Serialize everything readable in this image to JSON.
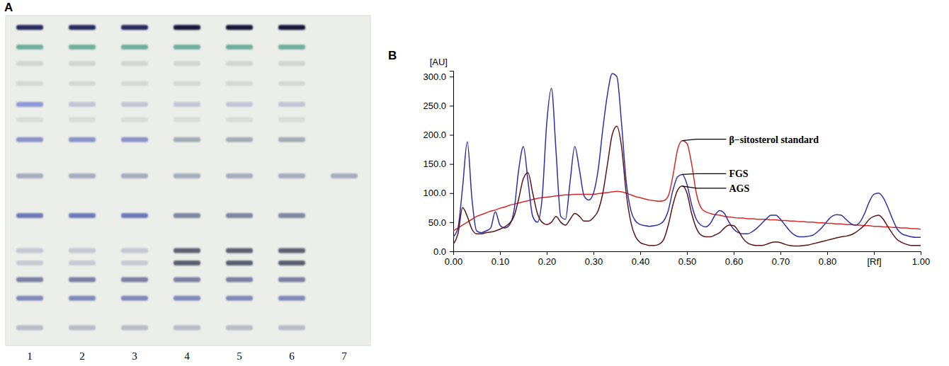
{
  "chart_data": [
    {
      "type": "tlc_plate",
      "panel": "A",
      "categories": [
        "1",
        "2",
        "3",
        "4",
        "5",
        "6",
        "7"
      ],
      "bands": [
        {
          "rf": 0.985,
          "color": "#2a2a5e",
          "lanes": [
            0,
            1,
            2
          ]
        },
        {
          "rf": 0.985,
          "color": "#141438",
          "lanes": [
            3,
            4,
            5
          ]
        },
        {
          "rf": 0.923,
          "color": "#6fae9e",
          "lanes": [
            0,
            1,
            2,
            3,
            4,
            5
          ]
        },
        {
          "rf": 0.871,
          "color": "#d2d6d0",
          "lanes": [
            0,
            1,
            2,
            3,
            4,
            5
          ]
        },
        {
          "rf": 0.808,
          "color": "#d6d9d3",
          "lanes": [
            0,
            1,
            2,
            3,
            4,
            5
          ]
        },
        {
          "rf": 0.742,
          "color": "#8f98d6",
          "lanes": [
            0
          ]
        },
        {
          "rf": 0.742,
          "color": "#c2c6d4",
          "lanes": [
            1,
            2,
            3,
            4,
            5
          ]
        },
        {
          "rf": 0.694,
          "color": "#dadcd6",
          "lanes": [
            0,
            1,
            2,
            3,
            4,
            5
          ]
        },
        {
          "rf": 0.631,
          "color": "#8a92c8",
          "lanes": [
            0,
            1,
            2
          ]
        },
        {
          "rf": 0.631,
          "color": "#a4acb6",
          "lanes": [
            3,
            4,
            5
          ]
        },
        {
          "rf": 0.517,
          "color": "#a8acbc",
          "lanes": [
            0,
            1,
            2,
            3,
            4,
            5,
            6
          ]
        },
        {
          "rf": 0.392,
          "color": "#6e78b8",
          "lanes": [
            0,
            1,
            2
          ]
        },
        {
          "rf": 0.392,
          "color": "#7f86a0",
          "lanes": [
            3,
            4,
            5
          ]
        },
        {
          "rf": 0.281,
          "color": "#c5c8d2",
          "lanes": [
            0,
            1,
            2
          ]
        },
        {
          "rf": 0.281,
          "color": "#5c6070",
          "lanes": [
            3,
            4,
            5
          ]
        },
        {
          "rf": 0.242,
          "color": "#c8cbd4",
          "lanes": [
            0,
            1,
            2
          ]
        },
        {
          "rf": 0.242,
          "color": "#5a5e70",
          "lanes": [
            3,
            4,
            5
          ]
        },
        {
          "rf": 0.19,
          "color": "#7b80a0",
          "lanes": [
            0,
            1,
            2,
            3,
            4,
            5
          ]
        },
        {
          "rf": 0.131,
          "color": "#8088b8",
          "lanes": [
            0,
            1,
            2,
            3,
            4,
            5
          ]
        },
        {
          "rf": 0.038,
          "color": "#b8bcc4",
          "lanes": [
            0,
            1,
            2,
            3,
            4,
            5
          ]
        }
      ]
    },
    {
      "type": "line",
      "panel": "B",
      "ylabel": "[AU]",
      "grid": false,
      "x": [
        0,
        0.01,
        0.02,
        0.03,
        0.04,
        0.05,
        0.06,
        0.07,
        0.08,
        0.09,
        0.1,
        0.11,
        0.12,
        0.13,
        0.14,
        0.15,
        0.16,
        0.17,
        0.18,
        0.19,
        0.2,
        0.21,
        0.22,
        0.23,
        0.24,
        0.25,
        0.26,
        0.27,
        0.28,
        0.29,
        0.3,
        0.31,
        0.32,
        0.33,
        0.34,
        0.35,
        0.36,
        0.37,
        0.38,
        0.39,
        0.4,
        0.41,
        0.42,
        0.43,
        0.44,
        0.45,
        0.46,
        0.47,
        0.48,
        0.49,
        0.5,
        0.51,
        0.52,
        0.53,
        0.54,
        0.55,
        0.56,
        0.57,
        0.58,
        0.59,
        0.6,
        0.61,
        0.62,
        0.63,
        0.64,
        0.65,
        0.66,
        0.67,
        0.68,
        0.69,
        0.7,
        0.71,
        0.72,
        0.73,
        0.74,
        0.75,
        0.76,
        0.77,
        0.78,
        0.79,
        0.8,
        0.81,
        0.82,
        0.83,
        0.84,
        0.85,
        0.86,
        0.87,
        0.88,
        0.89,
        0.9,
        0.91,
        0.92,
        0.93,
        0.94,
        0.95,
        0.96,
        0.97,
        0.98,
        0.99,
        1
      ],
      "series": [
        {
          "color": "#d42a2a",
          "values": [
            35,
            40,
            45,
            50,
            55,
            60,
            63,
            66,
            69,
            71,
            74,
            76,
            79,
            81,
            83,
            85,
            87,
            89,
            91,
            92,
            93,
            94,
            95,
            96,
            97,
            97,
            98,
            98,
            98,
            98,
            98,
            99,
            100,
            101,
            102,
            103,
            102,
            100,
            97,
            94,
            92,
            90,
            88,
            87,
            86,
            87,
            95,
            130,
            175,
            190,
            185,
            150,
            100,
            75,
            68,
            65,
            63,
            62,
            60,
            59,
            58,
            57,
            57,
            56,
            56,
            55,
            55,
            55,
            54,
            54,
            53,
            53,
            52,
            52,
            51,
            51,
            50,
            50,
            49,
            49,
            48,
            48,
            47,
            47,
            46,
            46,
            45,
            45,
            44,
            44,
            43,
            43,
            42,
            42,
            41,
            41,
            40,
            40,
            39,
            39,
            38
          ]
        },
        {
          "color": "#2f2fa8",
          "values": [
            25,
            40,
            110,
            188,
            90,
            35,
            32,
            35,
            40,
            68,
            45,
            40,
            45,
            70,
            140,
            180,
            120,
            60,
            50,
            90,
            220,
            280,
            170,
            60,
            55,
            120,
            180,
            140,
            95,
            88,
            100,
            140,
            210,
            270,
            305,
            300,
            220,
            120,
            70,
            52,
            46,
            44,
            43,
            44,
            46,
            52,
            70,
            105,
            128,
            132,
            115,
            80,
            55,
            45,
            42,
            48,
            62,
            70,
            65,
            50,
            38,
            32,
            30,
            30,
            34,
            40,
            48,
            56,
            62,
            62,
            55,
            45,
            35,
            28,
            25,
            25,
            26,
            28,
            34,
            42,
            52,
            60,
            63,
            62,
            55,
            48,
            45,
            50,
            65,
            85,
            98,
            100,
            92,
            75,
            55,
            38,
            30,
            27,
            25,
            24,
            24
          ]
        },
        {
          "color": "#5c1414",
          "values": [
            12,
            30,
            75,
            60,
            38,
            30,
            30,
            32,
            33,
            35,
            38,
            42,
            48,
            60,
            90,
            125,
            135,
            100,
            65,
            50,
            46,
            50,
            60,
            50,
            45,
            55,
            65,
            60,
            52,
            52,
            58,
            70,
            100,
            150,
            200,
            215,
            180,
            100,
            50,
            25,
            15,
            12,
            10,
            10,
            12,
            20,
            45,
            80,
            105,
            112,
            100,
            65,
            40,
            28,
            25,
            25,
            28,
            32,
            40,
            45,
            44,
            35,
            22,
            14,
            11,
            10,
            10,
            12,
            15,
            16,
            15,
            12,
            10,
            9,
            9,
            10,
            11,
            13,
            15,
            17,
            19,
            21,
            23,
            25,
            26,
            28,
            32,
            38,
            45,
            55,
            60,
            62,
            55,
            42,
            30,
            20,
            15,
            12,
            10,
            10,
            10
          ]
        }
      ],
      "xlim": [
        0,
        1
      ],
      "ylim": [
        0,
        310
      ],
      "xticks": [
        {
          "value": 0,
          "label": "0.00"
        },
        {
          "value": 0.1,
          "label": "0.10"
        },
        {
          "value": 0.2,
          "label": "0.20"
        },
        {
          "value": 0.3,
          "label": "0.30"
        },
        {
          "value": 0.4,
          "label": "0.40"
        },
        {
          "value": 0.5,
          "label": "0.50"
        },
        {
          "value": 0.6,
          "label": "0.60"
        },
        {
          "value": 0.7,
          "label": "0.70"
        },
        {
          "value": 0.8,
          "label": "0.80"
        },
        {
          "value": 0.9,
          "label": "[Rf]"
        },
        {
          "value": 1,
          "label": "1.00"
        }
      ],
      "yticks": [
        {
          "value": 0,
          "label": "0.0"
        },
        {
          "value": 50,
          "label": "50.0"
        },
        {
          "value": 100,
          "label": "100.0"
        },
        {
          "value": 150,
          "label": "150.0"
        },
        {
          "value": 200,
          "label": "200.0"
        },
        {
          "value": 250,
          "label": "250.0"
        },
        {
          "value": 300,
          "label": "300.0"
        }
      ],
      "annotations": [
        {
          "text": "β−sitosterol standard",
          "x": 0.49,
          "y": 190
        },
        {
          "text": "FGS",
          "x": 0.49,
          "y": 132
        },
        {
          "text": "AGS",
          "x": 0.49,
          "y": 112
        }
      ]
    }
  ]
}
